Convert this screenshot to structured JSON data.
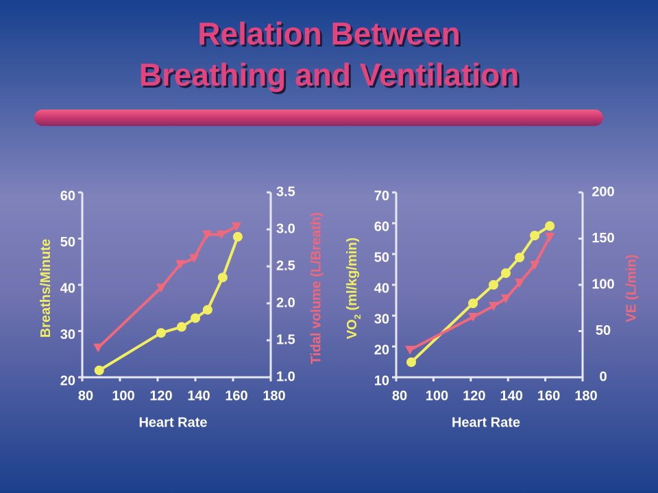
{
  "title": [
    "Relation Between",
    "Breathing and Ventilation"
  ],
  "chart_data": [
    {
      "type": "line",
      "xlabel": "Heart Rate",
      "ylabel": [
        "Breaths/Minute"
      ],
      "y2label": "Tidal volume (L/Breath)",
      "xlim": [
        80,
        180
      ],
      "xticks": [
        80,
        100,
        120,
        140,
        160,
        180
      ],
      "ylim": [
        20,
        60
      ],
      "yticks": [
        20,
        30,
        40,
        50,
        60
      ],
      "y2lim": [
        1.0,
        3.5
      ],
      "y2ticks": [
        {
          "value": 1.0,
          "label": "1.0"
        },
        1.5,
        {
          "value": 2.0,
          "label": "2.0"
        },
        2.5,
        {
          "value": 3.0,
          "label": "3.0"
        },
        3.5
      ],
      "series": [
        {
          "color": "#f2ee62",
          "marker": "circle",
          "x": [
            89,
            121.8,
            132.7,
            140,
            146.5,
            154.5,
            162.5
          ],
          "values": [
            21.5,
            29.6,
            30.9,
            32.8,
            34.6,
            41.6,
            50.4
          ]
        },
        {
          "color": "#f0687c",
          "marker": "triangle-down",
          "axis": "y2",
          "x": [
            88.4,
            121.8,
            132,
            139.3,
            146.2,
            153.8,
            161.8
          ],
          "values": [
            1.4,
            2.21,
            2.53,
            2.61,
            2.93,
            2.93,
            3.04
          ]
        }
      ]
    },
    {
      "type": "line",
      "xlabel": "Heart Rate",
      "ylabel": [
        "VO",
        "2",
        " (ml/kg/min)"
      ],
      "y2label": "VE (L/min)",
      "xlim": [
        80,
        180
      ],
      "xticks": [
        80,
        100,
        120,
        140,
        160,
        180
      ],
      "ylim": [
        10,
        70
      ],
      "yticks": [
        10,
        20,
        30,
        40,
        50,
        60,
        70
      ],
      "y2lim": [
        0,
        200
      ],
      "y2ticks": [
        0,
        50,
        100,
        150,
        200
      ],
      "series": [
        {
          "color": "#f2ee62",
          "marker": "circle",
          "x": [
            88.1,
            121.2,
            132.2,
            138.8,
            146.2,
            154.3,
            162.4
          ],
          "values": [
            14.9,
            34,
            40,
            43.8,
            48.9,
            56,
            59.1
          ]
        },
        {
          "color": "#f0687c",
          "marker": "triangle-down",
          "axis": "y2",
          "x": [
            87.4,
            121.2,
            132.2,
            138.8,
            146.2,
            154.3,
            162.4
          ],
          "values": [
            29.6,
            65.2,
            77,
            85.2,
            102.2,
            121.5,
            151.9
          ]
        }
      ]
    }
  ]
}
